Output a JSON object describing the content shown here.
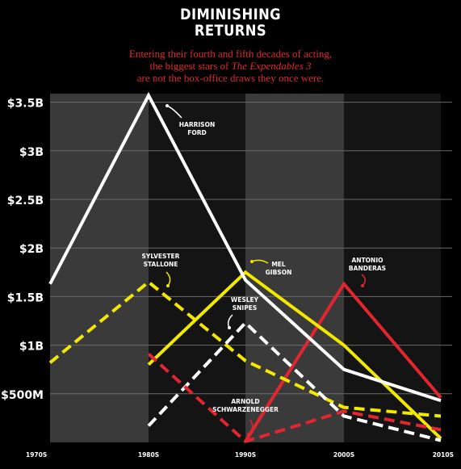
{
  "chart_data": {
    "type": "line",
    "title_line1": "DIMINISHING",
    "title_line2": "RETURNS",
    "subtitle_line1": "Entering their fourth and fifth decades of acting,",
    "subtitle_line2_pre": "the biggest stars of ",
    "subtitle_line2_em": "The Expendables 3",
    "subtitle_line3": "are not the box-office draws they once were.",
    "x_categories": [
      "1970S",
      "1980S",
      "1990S",
      "2000S",
      "2010S"
    ],
    "y_ticks": [
      {
        "value": 0.5,
        "label": "$500M"
      },
      {
        "value": 1.0,
        "label": "$1B"
      },
      {
        "value": 1.5,
        "label": "$1.5B"
      },
      {
        "value": 2.0,
        "label": "$2B"
      },
      {
        "value": 2.5,
        "label": "$2.5B"
      },
      {
        "value": 3.0,
        "label": "$3B"
      },
      {
        "value": 3.5,
        "label": "$3.5B"
      }
    ],
    "ylim": [
      0,
      3.6
    ],
    "y_unit": "billions USD",
    "grid": true,
    "series": [
      {
        "name": "HARRISON FORD",
        "label_lines": [
          "HARRISON",
          "FORD"
        ],
        "color": "#ffffff",
        "dashed": false,
        "points": [
          [
            0,
            1.63
          ],
          [
            1,
            3.57
          ],
          [
            2,
            1.67
          ],
          [
            3,
            0.75
          ],
          [
            4,
            0.43
          ]
        ]
      },
      {
        "name": "SYLVESTER STALLONE",
        "label_lines": [
          "SYLVESTER",
          "STALLONE"
        ],
        "color": "#f3e800",
        "dashed": true,
        "points": [
          [
            0,
            0.82
          ],
          [
            1,
            1.65
          ],
          [
            2,
            0.84
          ],
          [
            3,
            0.36
          ],
          [
            4,
            0.27
          ]
        ]
      },
      {
        "name": "MEL GIBSON",
        "label_lines": [
          "MEL",
          "GIBSON"
        ],
        "color": "#f3e800",
        "dashed": false,
        "points": [
          [
            1,
            0.8
          ],
          [
            2,
            1.75
          ],
          [
            3,
            1.0
          ],
          [
            4,
            0.04
          ]
        ]
      },
      {
        "name": "WESLEY SNIPES",
        "label_lines": [
          "WESLEY",
          "SNIPES"
        ],
        "color": "#ffffff",
        "dashed": true,
        "points": [
          [
            1,
            0.17
          ],
          [
            2,
            1.23
          ],
          [
            3,
            0.27
          ],
          [
            4,
            0.02
          ]
        ]
      },
      {
        "name": "ANTONIO BANDERAS",
        "label_lines": [
          "ANTONIO",
          "BANDERAS"
        ],
        "color": "#e2262f",
        "dashed": false,
        "points": [
          [
            2,
            0.01
          ],
          [
            3,
            1.63
          ],
          [
            4,
            0.46
          ]
        ]
      },
      {
        "name": "ARNOLD SCHWARZENEGGER",
        "label_lines": [
          "ARNOLD",
          "SCHWARZENEGGER"
        ],
        "color": "#e2262f",
        "dashed": true,
        "points": [
          [
            1,
            0.91
          ],
          [
            2,
            0.01
          ],
          [
            3,
            0.32
          ],
          [
            4,
            0.13
          ]
        ]
      }
    ]
  }
}
